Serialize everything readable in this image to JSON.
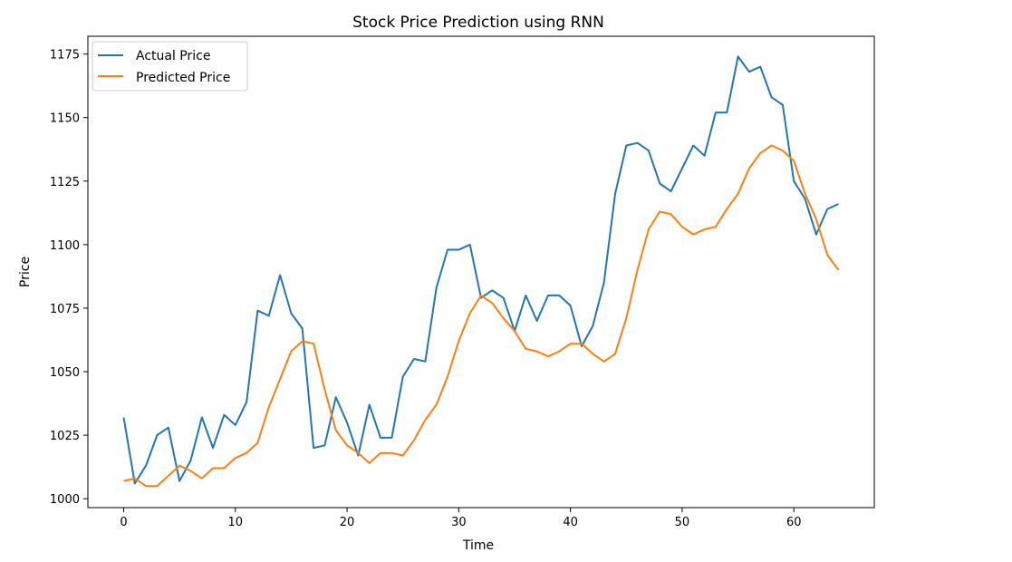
{
  "chart_data": {
    "type": "line",
    "title": "Stock Price Prediction using RNN",
    "xlabel": "Time",
    "ylabel": "Price",
    "xlim": [
      -3.2,
      67.2
    ],
    "ylim": [
      996.5,
      1182
    ],
    "xticks": [
      0,
      10,
      20,
      30,
      40,
      50,
      60
    ],
    "xtick_labels": [
      "0",
      "10",
      "20",
      "30",
      "40",
      "50",
      "60"
    ],
    "yticks": [
      1000,
      1025,
      1050,
      1075,
      1100,
      1125,
      1150,
      1175
    ],
    "ytick_labels": [
      "1000",
      "1025",
      "1050",
      "1075",
      "1100",
      "1125",
      "1150",
      "1175"
    ],
    "grid": false,
    "legend_position": "upper-left",
    "series": [
      {
        "name": "Actual Price",
        "color": "#1f77b4",
        "x": [
          0,
          1,
          2,
          3,
          4,
          5,
          6,
          7,
          8,
          9,
          10,
          11,
          12,
          13,
          14,
          15,
          16,
          17,
          18,
          19,
          20,
          21,
          22,
          23,
          24,
          25,
          26,
          27,
          28,
          29,
          30,
          31,
          32,
          33,
          34,
          35,
          36,
          37,
          38,
          39,
          40,
          41,
          42,
          43,
          44,
          45,
          46,
          47,
          48,
          49,
          50,
          51,
          52,
          53,
          54,
          55,
          56,
          57,
          58,
          59,
          60,
          61,
          62,
          63,
          64
        ],
        "values": [
          1032,
          1006,
          1013,
          1025,
          1028,
          1007,
          1015,
          1032,
          1020,
          1033,
          1029,
          1038,
          1074,
          1072,
          1088,
          1073,
          1067,
          1020,
          1021,
          1040,
          1030,
          1017,
          1037,
          1024,
          1024,
          1048,
          1055,
          1054,
          1083,
          1098,
          1098,
          1100,
          1079,
          1082,
          1079,
          1066,
          1080,
          1070,
          1080,
          1080,
          1076,
          1060,
          1068,
          1085,
          1120,
          1139,
          1140,
          1137,
          1124,
          1121,
          1130,
          1139,
          1135,
          1152,
          1152,
          1174,
          1168,
          1170,
          1158,
          1155,
          1125,
          1118,
          1104,
          1114,
          1116
        ]
      },
      {
        "name": "Predicted Price",
        "color": "#ff7f0e",
        "x": [
          0,
          1,
          2,
          3,
          4,
          5,
          6,
          7,
          8,
          9,
          10,
          11,
          12,
          13,
          14,
          15,
          16,
          17,
          18,
          19,
          20,
          21,
          22,
          23,
          24,
          25,
          26,
          27,
          28,
          29,
          30,
          31,
          32,
          33,
          34,
          35,
          36,
          37,
          38,
          39,
          40,
          41,
          42,
          43,
          44,
          45,
          46,
          47,
          48,
          49,
          50,
          51,
          52,
          53,
          54,
          55,
          56,
          57,
          58,
          59,
          60,
          61,
          62,
          63,
          64
        ],
        "values": [
          1007,
          1008,
          1005,
          1005,
          1009,
          1013,
          1011,
          1008,
          1012,
          1012,
          1016,
          1018,
          1022,
          1036,
          1047,
          1058,
          1062,
          1061,
          1043,
          1027,
          1021,
          1018,
          1014,
          1018,
          1018,
          1017,
          1023,
          1031,
          1037,
          1048,
          1062,
          1073,
          1080,
          1077,
          1071,
          1066,
          1059,
          1058,
          1056,
          1058,
          1061,
          1061,
          1057,
          1054,
          1057,
          1071,
          1090,
          1106,
          1113,
          1112,
          1107,
          1104,
          1106,
          1107,
          1114,
          1120,
          1130,
          1136,
          1139,
          1137,
          1133,
          1120,
          1110,
          1096,
          1090
        ]
      }
    ]
  }
}
